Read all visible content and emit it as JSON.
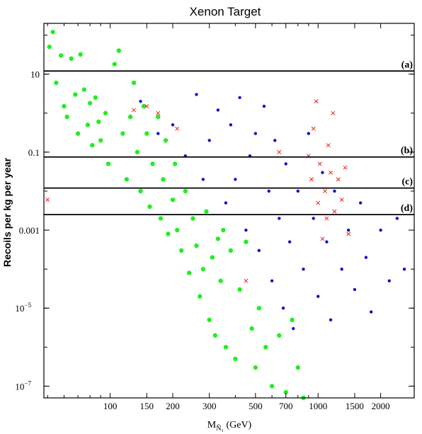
{
  "chart_data": {
    "type": "scatter",
    "title": "Xenon Target",
    "xlabel": "M",
    "xlabel_sub": "Ñ₁",
    "xlabel_unit": "(GeV)",
    "ylabel": "Recoils per kg per year",
    "xscale": "log",
    "yscale": "log",
    "xlim": [
      48,
      2900
    ],
    "ylim": [
      5e-08,
      200
    ],
    "x_ticks": [
      {
        "value": 100,
        "label": "100"
      },
      {
        "value": 150,
        "label": "150"
      },
      {
        "value": 200,
        "label": "200"
      },
      {
        "value": 300,
        "label": "300"
      },
      {
        "value": 500,
        "label": "500"
      },
      {
        "value": 700,
        "label": "700"
      },
      {
        "value": 1000,
        "label": "1000"
      },
      {
        "value": 1500,
        "label": "1500"
      },
      {
        "value": 2000,
        "label": "2000"
      }
    ],
    "y_ticks": [
      {
        "value": 10,
        "label": "10",
        "exp": ""
      },
      {
        "value": 0.1,
        "label": "0.1",
        "exp": ""
      },
      {
        "value": 0.001,
        "label": "0.001",
        "exp": ""
      },
      {
        "value": 1e-05,
        "label": "10",
        "exp": "−5"
      },
      {
        "value": 1e-07,
        "label": "10",
        "exp": "−7"
      }
    ],
    "hlines": [
      {
        "label": "(a)",
        "y": 12
      },
      {
        "label": "(b)",
        "y": 0.075
      },
      {
        "label": "(c)",
        "y": 0.012
      },
      {
        "label": "(d)",
        "y": 0.0025
      }
    ],
    "colors": {
      "green": "#22ee22",
      "blue": "#1111cc",
      "red": "#ee2222"
    },
    "series": [
      {
        "marker": "green-dot",
        "points": [
          [
            51,
            50
          ],
          [
            53,
            120
          ],
          [
            55,
            6
          ],
          [
            58,
            30
          ],
          [
            60,
            1.5
          ],
          [
            62,
            0.8
          ],
          [
            65,
            25
          ],
          [
            68,
            3
          ],
          [
            70,
            0.3
          ],
          [
            72,
            32
          ],
          [
            75,
            4
          ],
          [
            78,
            0.5
          ],
          [
            80,
            1.8
          ],
          [
            82,
            0.15
          ],
          [
            85,
            2.5
          ],
          [
            88,
            0.6
          ],
          [
            90,
            0.2
          ],
          [
            95,
            1
          ],
          [
            98,
            0.05
          ],
          [
            105,
            18
          ],
          [
            110,
            40
          ],
          [
            115,
            0.3
          ],
          [
            120,
            0.02
          ],
          [
            125,
            0.8
          ],
          [
            130,
            6
          ],
          [
            135,
            0.1
          ],
          [
            140,
            0.01
          ],
          [
            145,
            1.5
          ],
          [
            150,
            0.3
          ],
          [
            155,
            0.004
          ],
          [
            160,
            0.05
          ],
          [
            170,
            0.8
          ],
          [
            175,
            0.002
          ],
          [
            180,
            0.02
          ],
          [
            185,
            0.2
          ],
          [
            190,
            0.0008
          ],
          [
            200,
            0.006
          ],
          [
            205,
            0.05
          ],
          [
            210,
            0.001
          ],
          [
            220,
            0.0003
          ],
          [
            230,
            0.01
          ],
          [
            240,
            8e-05
          ],
          [
            250,
            0.002
          ],
          [
            260,
            0.0004
          ],
          [
            270,
            2e-05
          ],
          [
            280,
            0.0001
          ],
          [
            290,
            0.003
          ],
          [
            300,
            5e-06
          ],
          [
            310,
            0.0002
          ],
          [
            320,
            2e-06
          ],
          [
            330,
            0.0006
          ],
          [
            340,
            5e-05
          ],
          [
            350,
            0.001
          ],
          [
            360,
            1e-06
          ],
          [
            380,
            0.0003
          ],
          [
            400,
            5e-07
          ],
          [
            420,
            3e-05
          ],
          [
            450,
            0.0005
          ],
          [
            480,
            3e-06
          ],
          [
            500,
            3e-07
          ],
          [
            520,
            1e-05
          ],
          [
            560,
            1e-06
          ],
          [
            600,
            1e-07
          ],
          [
            650,
            2e-06
          ],
          [
            700,
            7e-08
          ],
          [
            750,
            5e-06
          ],
          [
            800,
            3e-07
          ],
          [
            850,
            5e-08
          ]
        ]
      },
      {
        "marker": "blue-dot",
        "points": [
          [
            140,
            2
          ],
          [
            170,
            0.3
          ],
          [
            200,
            0.5
          ],
          [
            230,
            0.08
          ],
          [
            260,
            3
          ],
          [
            280,
            0.02
          ],
          [
            300,
            0.2
          ],
          [
            330,
            1.2
          ],
          [
            360,
            0.005
          ],
          [
            380,
            0.5
          ],
          [
            400,
            0.02
          ],
          [
            420,
            2.5
          ],
          [
            450,
            0.001
          ],
          [
            470,
            0.08
          ],
          [
            500,
            0.3
          ],
          [
            520,
            0.0003
          ],
          [
            550,
            1.5
          ],
          [
            580,
            0.01
          ],
          [
            600,
            5e-05
          ],
          [
            620,
            0.2
          ],
          [
            650,
            0.002
          ],
          [
            680,
            1e-05
          ],
          [
            700,
            0.05
          ],
          [
            730,
            0.0005
          ],
          [
            760,
            3e-06
          ],
          [
            800,
            0.01
          ],
          [
            850,
            0.0001
          ],
          [
            900,
            0.3
          ],
          [
            950,
            0.002
          ],
          [
            1000,
            2e-05
          ],
          [
            1050,
            0.03
          ],
          [
            1100,
            0.0005
          ],
          [
            1150,
            5e-06
          ],
          [
            1200,
            0.01
          ],
          [
            1300,
            0.0001
          ],
          [
            1400,
            0.001
          ],
          [
            1500,
            3e-05
          ],
          [
            1600,
            0.005
          ],
          [
            1700,
            0.0002
          ],
          [
            1800,
            8e-06
          ],
          [
            2000,
            0.001
          ],
          [
            2200,
            5e-05
          ],
          [
            2400,
            0.002
          ],
          [
            2600,
            0.0001
          ]
        ]
      },
      {
        "marker": "red-x",
        "points": [
          [
            50,
            0.006
          ],
          [
            130,
            1.2
          ],
          [
            150,
            1.5
          ],
          [
            170,
            1
          ],
          [
            210,
            0.4
          ],
          [
            450,
            5e-05
          ],
          [
            650,
            0.1
          ],
          [
            900,
            0.08
          ],
          [
            930,
            0.02
          ],
          [
            950,
            0.4
          ],
          [
            980,
            2
          ],
          [
            1000,
            0.005
          ],
          [
            1020,
            0.05
          ],
          [
            1050,
            0.0006
          ],
          [
            1080,
            0.01
          ],
          [
            1100,
            0.002
          ],
          [
            1120,
            0.15
          ],
          [
            1150,
            0.03
          ],
          [
            1180,
            1
          ],
          [
            1200,
            0.003
          ],
          [
            1250,
            0.02
          ],
          [
            1300,
            0.006
          ],
          [
            1350,
            0.04
          ],
          [
            1400,
            0.0008
          ]
        ]
      }
    ]
  }
}
